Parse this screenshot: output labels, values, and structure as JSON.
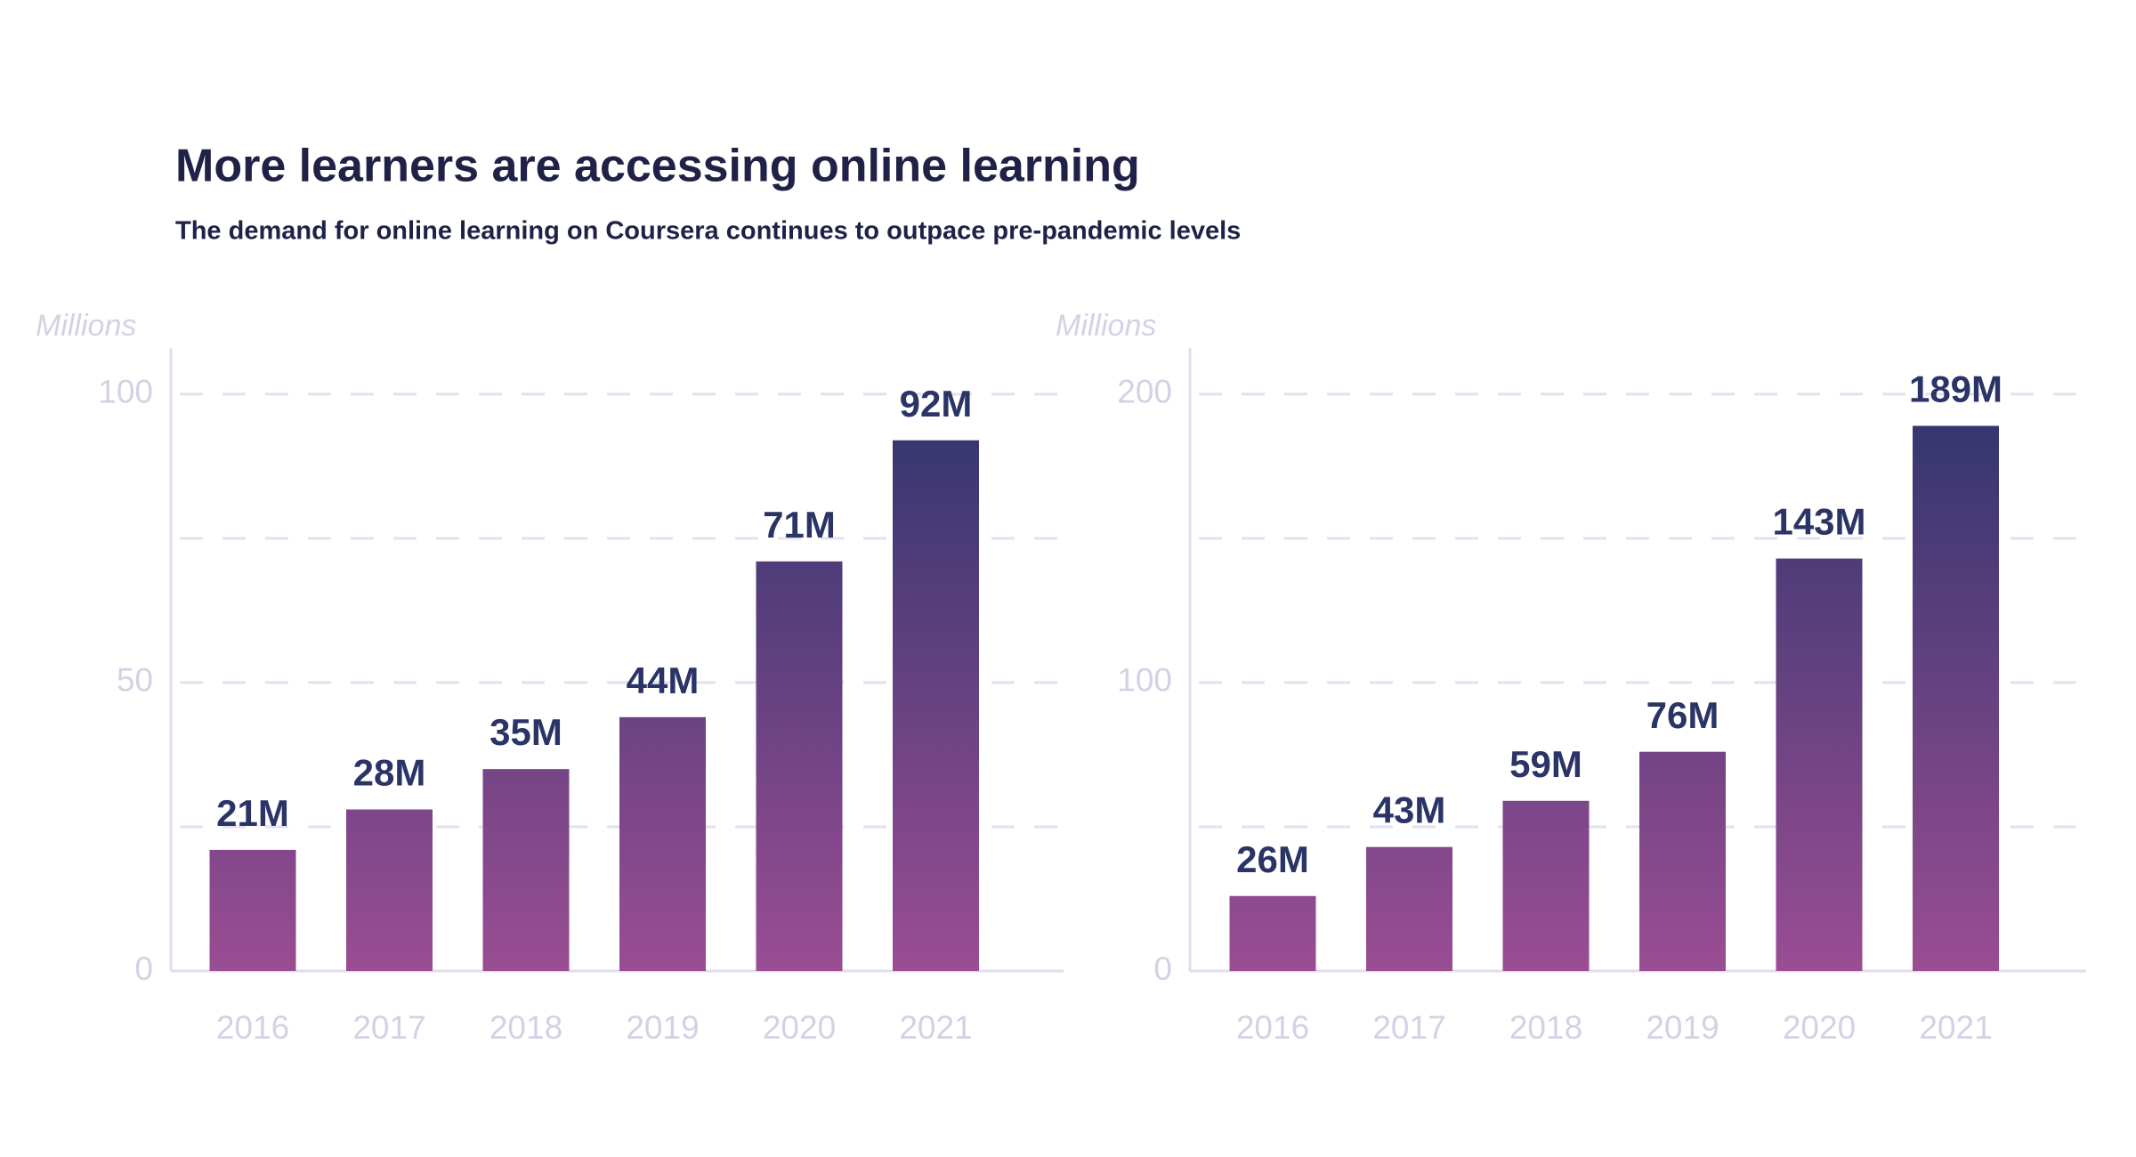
{
  "title": "More learners are accessing online learning",
  "subtitle": "The demand for online learning on Coursera  continues to outpace pre-pandemic levels",
  "chart_data": [
    {
      "type": "bar",
      "y_label": "Millions",
      "categories": [
        "2016",
        "2017",
        "2018",
        "2019",
        "2020",
        "2021"
      ],
      "values": [
        21,
        28,
        35,
        44,
        71,
        92
      ],
      "value_labels": [
        "21M",
        "28M",
        "35M",
        "44M",
        "71M",
        "92M"
      ],
      "ylim": [
        0,
        108
      ],
      "yticks": [
        0,
        {
          "value": 25,
          "label": null
        },
        50,
        {
          "value": 75,
          "label": null
        },
        100
      ],
      "grid": true,
      "color": [
        "#9a4d93",
        "#27336b"
      ]
    },
    {
      "type": "bar",
      "y_label": "Millions",
      "categories": [
        "2016",
        "2017",
        "2018",
        "2019",
        "2020",
        "2021"
      ],
      "values": [
        26,
        43,
        59,
        76,
        143,
        189
      ],
      "value_labels": [
        "26M",
        "43M",
        "59M",
        "76M",
        "143M",
        "189M"
      ],
      "ylim": [
        0,
        216
      ],
      "yticks": [
        0,
        {
          "value": 50,
          "label": null
        },
        100,
        {
          "value": 150,
          "label": null
        },
        200
      ],
      "grid": true,
      "color": [
        "#9a4d93",
        "#27336b"
      ]
    }
  ]
}
